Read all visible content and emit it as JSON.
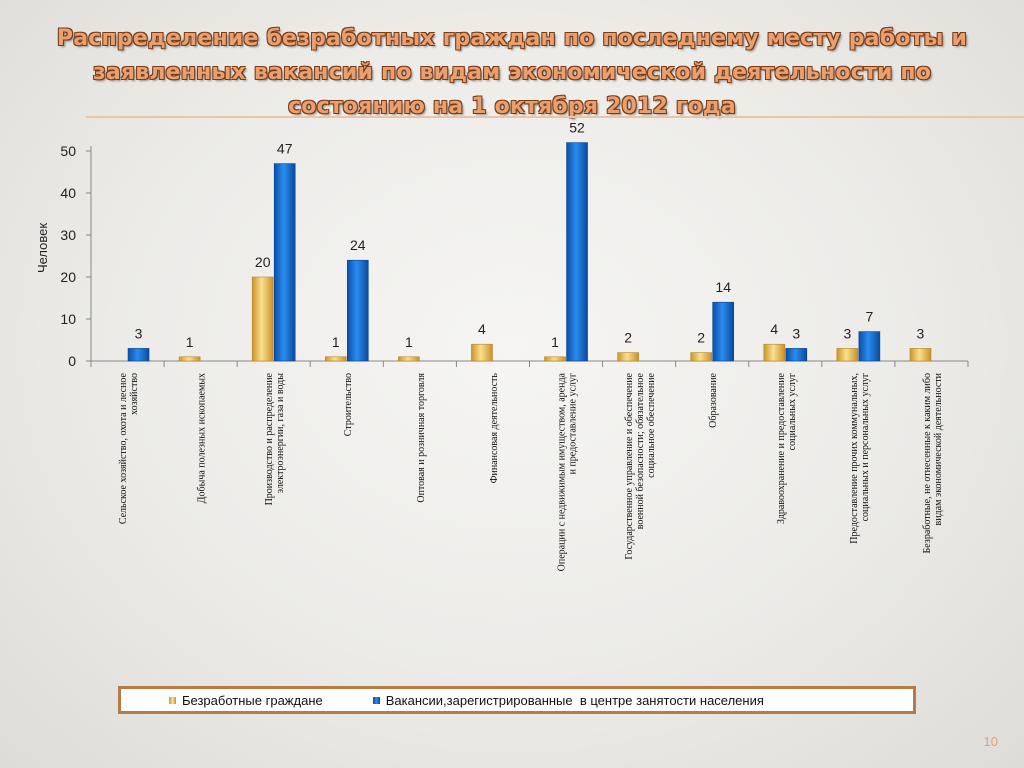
{
  "title": "Распределение безработных граждан по последнему месту работы и заявленных вакансий по видам экономической деятельности по состоянию на 1 октября 2012 года",
  "page_number": "10",
  "colors": {
    "unemployed": "#f0c060",
    "vacancies": "#1b78d8",
    "accent": "#e8a070",
    "legend_border": "#b87a47"
  },
  "chart_data": {
    "type": "bar",
    "title": "Распределение безработных граждан по последнему месту работы и заявленных вакансий по видам экономической деятельности по состоянию на 1 октября 2012 года",
    "ylabel": "Человек",
    "xlabel": "",
    "ylim": [
      0,
      50
    ],
    "yticks": [
      0,
      10,
      20,
      30,
      40,
      50
    ],
    "grid": false,
    "legend_position": "bottom",
    "categories": [
      "Сельское хозяйство, охота и лесное хозяйство",
      "Добыча полезных ископаемых",
      "Производство и распределение электроэнергии, газа и воды",
      "Строительство",
      "Оптовая и розничная торговля",
      "Финансовая деятельность",
      "Операции с недвижимым имуществом, аренда и предоставление услуг",
      "Государственное управление и обеспечение военной безопасности; обязательное социальное обеспечение",
      "Образование",
      "Здравоохранение и предоставление социальных услуг",
      "Предоставление прочих коммунальных, социальных и персональных услуг",
      "Безработные, не отнесенные к каким либо видам экономической деятельности"
    ],
    "series": [
      {
        "name": "Безработные граждане",
        "values": [
          null,
          1,
          20,
          1,
          1,
          4,
          1,
          2,
          2,
          4,
          3,
          3
        ]
      },
      {
        "name": "Вакансии,зарегистрированные  в центре занятости населения",
        "values": [
          3,
          null,
          47,
          24,
          null,
          null,
          52,
          null,
          14,
          3,
          7,
          null
        ]
      }
    ]
  }
}
